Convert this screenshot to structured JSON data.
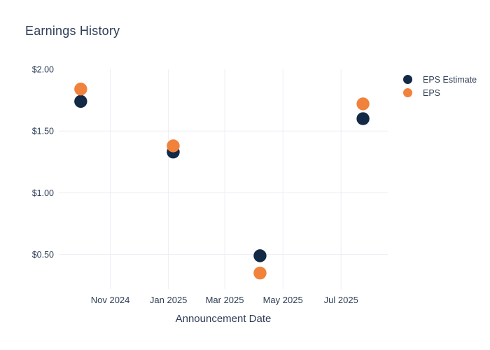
{
  "colors": {
    "background": "#ffffff",
    "text": "#2e3e56",
    "gridline": "#ebeef5",
    "navy": "#132945",
    "orange": "#f0823c"
  },
  "chart_data": {
    "type": "scatter",
    "title": "Earnings History",
    "xlabel": "Announcement Date",
    "ylabel": "",
    "grid": true,
    "legend_position": "right",
    "x_axis_range": [
      "2024-09-08",
      "2025-08-19"
    ],
    "y_axis_range": [
      0.22,
      2.0
    ],
    "x_ticks": [
      {
        "date": "2024-11-01",
        "label": "Nov 2024"
      },
      {
        "date": "2025-01-01",
        "label": "Jan 2025"
      },
      {
        "date": "2025-03-01",
        "label": "Mar 2025"
      },
      {
        "date": "2025-05-01",
        "label": "May 2025"
      },
      {
        "date": "2025-07-01",
        "label": "Jul 2025"
      }
    ],
    "y_ticks": [
      {
        "value": 0.5,
        "label": "$0.50",
        "gridline": true
      },
      {
        "value": 1.0,
        "label": "$1.00",
        "gridline": true
      },
      {
        "value": 1.5,
        "label": "$1.50",
        "gridline": true
      },
      {
        "value": 2.0,
        "label": "$2.00",
        "gridline": false
      }
    ],
    "series": [
      {
        "name": "EPS Estimate",
        "color": "#132945",
        "points": [
          {
            "date": "2024-10-01",
            "value": 1.74
          },
          {
            "date": "2025-01-06",
            "value": 1.33
          },
          {
            "date": "2025-04-07",
            "value": 0.49
          },
          {
            "date": "2025-07-24",
            "value": 1.6
          }
        ]
      },
      {
        "name": "EPS",
        "color": "#f0823c",
        "points": [
          {
            "date": "2024-10-01",
            "value": 1.84
          },
          {
            "date": "2025-01-06",
            "value": 1.38
          },
          {
            "date": "2025-04-07",
            "value": 0.35
          },
          {
            "date": "2025-07-24",
            "value": 1.72
          }
        ]
      }
    ]
  },
  "legend": {
    "items": [
      {
        "label": "EPS Estimate",
        "color": "#132945"
      },
      {
        "label": "EPS",
        "color": "#f0823c"
      }
    ]
  }
}
